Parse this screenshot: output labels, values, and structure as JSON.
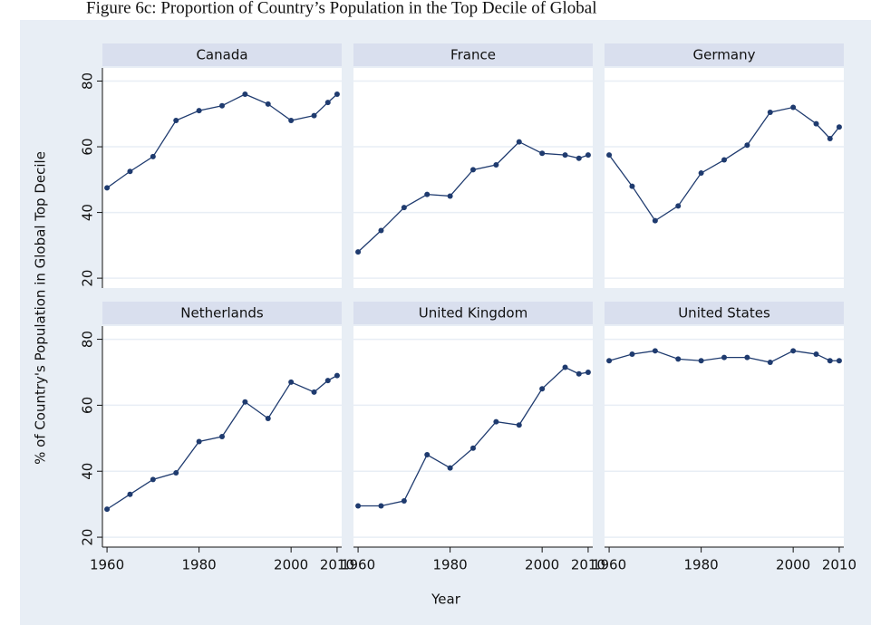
{
  "chart_data": {
    "type": "line",
    "title": "Figure 6c: Proportion of Country’s Population in the Top Decile of Global",
    "xlabel": "Year",
    "ylabel": "% of Country's Population in Global Top Decile",
    "x": [
      1960,
      1965,
      1970,
      1975,
      1980,
      1985,
      1990,
      1995,
      2000,
      2005,
      2008,
      2010
    ],
    "xlim": [
      1959,
      2011
    ],
    "xticks": [
      1960,
      1980,
      2000,
      2010
    ],
    "ylim": [
      17,
      84
    ],
    "yticks": [
      20,
      40,
      60,
      80
    ],
    "color": "#1f3b6f",
    "grid": true,
    "panels": [
      {
        "name": "Canada",
        "values": [
          47.5,
          52.5,
          57,
          68,
          71,
          72.5,
          76,
          73,
          68,
          69.5,
          73.5,
          76
        ]
      },
      {
        "name": "France",
        "values": [
          28,
          34.5,
          41.5,
          45.5,
          45,
          53,
          54.5,
          61.5,
          58,
          57.5,
          56.5,
          57.5
        ]
      },
      {
        "name": "Germany",
        "values": [
          57.5,
          48,
          37.5,
          42,
          52,
          56,
          60.5,
          70.5,
          72,
          67,
          62.5,
          66
        ]
      },
      {
        "name": "Netherlands",
        "values": [
          28.5,
          33,
          37.5,
          39.5,
          49,
          50.5,
          61,
          56,
          67,
          64,
          67.5,
          69
        ]
      },
      {
        "name": "United Kingdom",
        "values": [
          29.5,
          29.5,
          31,
          45,
          41,
          47,
          55,
          54,
          65,
          71.5,
          69.5,
          70
        ]
      },
      {
        "name": "United States",
        "values": [
          73.5,
          75.5,
          76.5,
          74,
          73.5,
          74.5,
          74.5,
          73,
          76.5,
          75.5,
          73.5,
          73.5
        ]
      }
    ]
  }
}
